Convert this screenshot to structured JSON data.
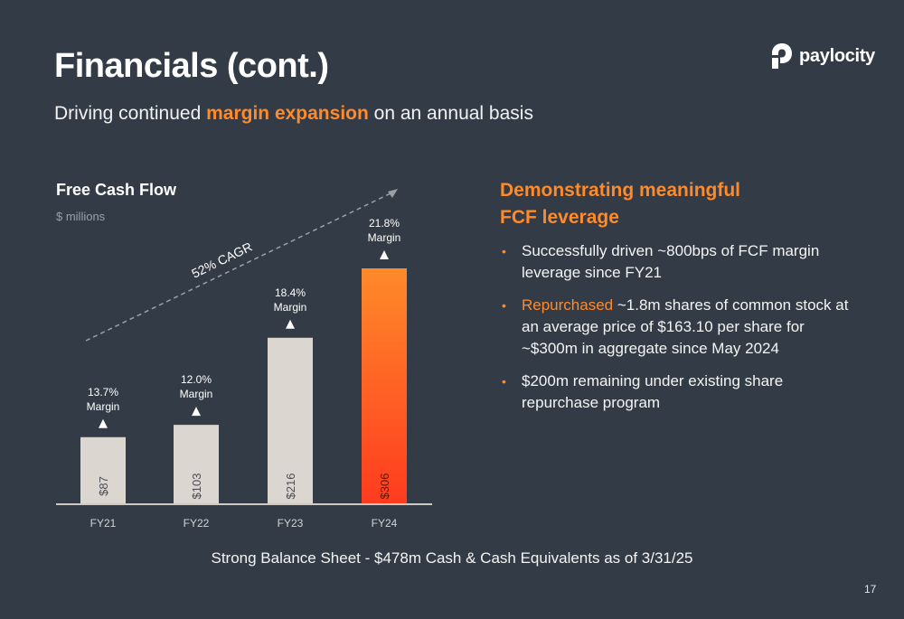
{
  "slide": {
    "title": "Financials (cont.)",
    "subtitle_pre": "Driving continued ",
    "subtitle_highlight": "margin expansion",
    "subtitle_post": " on an annual basis",
    "logo_text": "paylocity",
    "footer": "Strong Balance Sheet - $478m Cash & Cash Equivalents as of 3/31/25",
    "page_number": "17"
  },
  "right": {
    "title_line1": "Demonstrating meaningful",
    "title_line2": "FCF leverage",
    "bullet1": "Successfully driven ~800bps of FCF margin leverage since FY21",
    "bullet2_highlight": "Repurchased",
    "bullet2_rest": " ~1.8m shares of common stock at an average price of $163.10 per share for ~$300m in aggregate since May 2024",
    "bullet3": "$200m remaining under existing share repurchase program"
  },
  "chart_data": {
    "type": "bar",
    "title": "Free Cash Flow",
    "subtitle": "$ millions",
    "categories": [
      "FY21",
      "FY22",
      "FY23",
      "FY24"
    ],
    "values": [
      87,
      103,
      216,
      306
    ],
    "value_labels": [
      "$87",
      "$103",
      "$216",
      "$306"
    ],
    "margin_pct": [
      "13.7%",
      "12.0%",
      "18.4%",
      "21.8%"
    ],
    "margin_word": "Margin",
    "cagr_label": "52% CAGR",
    "ylim": [
      0,
      306
    ],
    "colors": {
      "bar": "#dcd6d1",
      "highlight_top": "#ff8a2a",
      "highlight_bottom": "#ff3b1f",
      "axis": "#cfcac5",
      "arrow": "#9aa0a6"
    }
  }
}
